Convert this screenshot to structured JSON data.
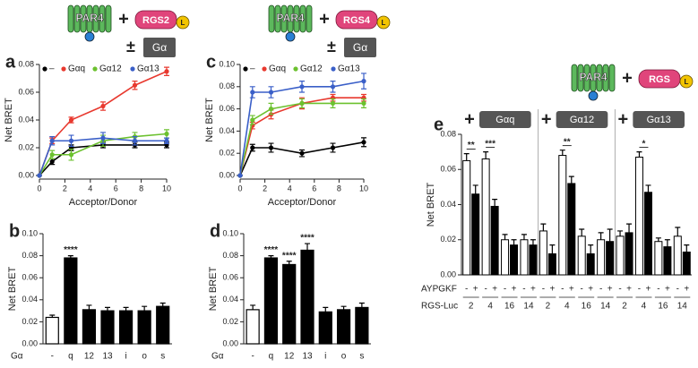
{
  "chart_data": [
    {
      "type": "line",
      "panel": "a",
      "schematic": {
        "receptor": "PAR4",
        "plus": "+",
        "rgs": "RGS2",
        "tag": "L",
        "pm": "±",
        "g": "Gα"
      },
      "xlabel": "Acceptor/Donor",
      "ylabel": "Net BRET",
      "x": [
        0,
        1,
        2.5,
        5,
        7.5,
        10
      ],
      "xlim": [
        0,
        10
      ],
      "xticks": [
        0,
        2,
        4,
        6,
        8,
        10
      ],
      "ylim": [
        0,
        0.08
      ],
      "yticks": [
        {
          "value": 0,
          "label": "0.00"
        },
        {
          "value": 0.02,
          "label": "0.02"
        },
        {
          "value": 0.04,
          "label": "0.04"
        },
        {
          "value": 0.06,
          "label": "0.06"
        },
        {
          "value": 0.08,
          "label": "0.08"
        }
      ],
      "series": [
        {
          "name": "–",
          "color": "#000000",
          "values": [
            0,
            0.01,
            0.02,
            0.022,
            0.022,
            0.022
          ],
          "errors": [
            0,
            0.002,
            0.002,
            0.002,
            0.002,
            0.002
          ]
        },
        {
          "name": "Gαq",
          "color": "#e8392f",
          "values": [
            0,
            0.025,
            0.04,
            0.05,
            0.065,
            0.075
          ],
          "errors": [
            0,
            0.002,
            0.002,
            0.003,
            0.003,
            0.003
          ]
        },
        {
          "name": "Gα12",
          "color": "#6cc12f",
          "values": [
            0,
            0.015,
            0.015,
            0.025,
            0.028,
            0.03
          ],
          "errors": [
            0,
            0.003,
            0.004,
            0.004,
            0.003,
            0.003
          ]
        },
        {
          "name": "Gα13",
          "color": "#3a5fc8",
          "values": [
            0,
            0.025,
            0.025,
            0.027,
            0.025,
            0.025
          ],
          "errors": [
            0,
            0.003,
            0.004,
            0.004,
            0.003,
            0.002
          ]
        }
      ]
    },
    {
      "type": "bar",
      "panel": "b",
      "ylabel": "Net BRET",
      "xlabel": "Gα",
      "categories": [
        "-",
        "q",
        "12",
        "13",
        "i",
        "o",
        "s"
      ],
      "values": [
        0.024,
        0.078,
        0.031,
        0.03,
        0.03,
        0.03,
        0.034
      ],
      "errors": [
        0.002,
        0.002,
        0.004,
        0.003,
        0.003,
        0.004,
        0.003
      ],
      "colors": [
        "#ffffff",
        "#000000",
        "#000000",
        "#000000",
        "#000000",
        "#000000",
        "#000000"
      ],
      "annotations": [
        null,
        "****",
        null,
        null,
        null,
        null,
        null
      ],
      "ylim": [
        0,
        0.1
      ],
      "yticks": [
        {
          "value": 0,
          "label": "0.00"
        },
        {
          "value": 0.02,
          "label": "0.02"
        },
        {
          "value": 0.04,
          "label": "0.04"
        },
        {
          "value": 0.06,
          "label": "0.06"
        },
        {
          "value": 0.08,
          "label": "0.08"
        },
        {
          "value": 0.1,
          "label": "0.10"
        }
      ]
    },
    {
      "type": "line",
      "panel": "c",
      "schematic": {
        "receptor": "PAR4",
        "plus": "+",
        "rgs": "RGS4",
        "tag": "L",
        "pm": "±",
        "g": "Gα"
      },
      "xlabel": "Acceptor/Donor",
      "ylabel": "Net BRET",
      "x": [
        0,
        1,
        2.5,
        5,
        7.5,
        10
      ],
      "xlim": [
        0,
        10
      ],
      "xticks": [
        0,
        2,
        4,
        6,
        8,
        10
      ],
      "ylim": [
        0,
        0.1
      ],
      "yticks": [
        {
          "value": 0,
          "label": "0.00"
        },
        {
          "value": 0.02,
          "label": "0.02"
        },
        {
          "value": 0.04,
          "label": "0.04"
        },
        {
          "value": 0.06,
          "label": "0.06"
        },
        {
          "value": 0.08,
          "label": "0.08"
        },
        {
          "value": 0.1,
          "label": "0.10"
        }
      ],
      "series": [
        {
          "name": "–",
          "color": "#000000",
          "values": [
            0,
            0.025,
            0.025,
            0.02,
            0.025,
            0.03
          ],
          "errors": [
            0,
            0.003,
            0.004,
            0.003,
            0.004,
            0.004
          ]
        },
        {
          "name": "Gαq",
          "color": "#e8392f",
          "values": [
            0,
            0.045,
            0.055,
            0.065,
            0.07,
            0.07
          ],
          "errors": [
            0,
            0.003,
            0.004,
            0.005,
            0.003,
            0.003
          ]
        },
        {
          "name": "Gα12",
          "color": "#6cc12f",
          "values": [
            0,
            0.05,
            0.06,
            0.065,
            0.065,
            0.065
          ],
          "errors": [
            0,
            0.004,
            0.005,
            0.004,
            0.004,
            0.004
          ]
        },
        {
          "name": "Gα13",
          "color": "#3a5fc8",
          "values": [
            0,
            0.075,
            0.075,
            0.08,
            0.08,
            0.085
          ],
          "errors": [
            0,
            0.005,
            0.005,
            0.005,
            0.005,
            0.007
          ]
        }
      ]
    },
    {
      "type": "bar",
      "panel": "d",
      "ylabel": "Net BRET",
      "xlabel": "Gα",
      "categories": [
        "-",
        "q",
        "12",
        "13",
        "i",
        "o",
        "s"
      ],
      "values": [
        0.031,
        0.078,
        0.072,
        0.085,
        0.029,
        0.031,
        0.033
      ],
      "errors": [
        0.004,
        0.002,
        0.003,
        0.006,
        0.004,
        0.003,
        0.004
      ],
      "colors": [
        "#ffffff",
        "#000000",
        "#000000",
        "#000000",
        "#000000",
        "#000000",
        "#000000"
      ],
      "annotations": [
        null,
        "****",
        "****",
        "****",
        null,
        null,
        null
      ],
      "ylim": [
        0,
        0.1
      ],
      "yticks": [
        {
          "value": 0,
          "label": "0.00"
        },
        {
          "value": 0.02,
          "label": "0.02"
        },
        {
          "value": 0.04,
          "label": "0.04"
        },
        {
          "value": 0.06,
          "label": "0.06"
        },
        {
          "value": 0.08,
          "label": "0.08"
        },
        {
          "value": 0.1,
          "label": "0.10"
        }
      ]
    },
    {
      "type": "grouped_bar",
      "panel": "e",
      "ylabel": "Net BRET",
      "schematic": {
        "receptor": "PAR4",
        "plus": "+",
        "rgs": "RGS",
        "tag": "L"
      },
      "row_labels": [
        "AYPGKF",
        "RGS-Luc"
      ],
      "ylim": [
        0,
        0.08
      ],
      "yticks": [
        {
          "value": 0,
          "label": "0.00"
        },
        {
          "value": 0.02,
          "label": "0.02"
        },
        {
          "value": 0.04,
          "label": "0.04"
        },
        {
          "value": 0.06,
          "label": "0.06"
        },
        {
          "value": 0.08,
          "label": "0.08"
        }
      ],
      "groups": [
        {
          "plus": "+",
          "title": "Gαq",
          "categories": [
            "2",
            "4",
            "16",
            "14"
          ],
          "annotations": [
            "**",
            "***",
            null,
            null
          ],
          "series": [
            {
              "name": "-",
              "color": "#ffffff",
              "values": [
                0.065,
                0.066,
                0.02,
                0.02
              ],
              "errors": [
                0.004,
                0.004,
                0.003,
                0.003
              ]
            },
            {
              "name": "+",
              "color": "#000000",
              "values": [
                0.046,
                0.039,
                0.017,
                0.017
              ],
              "errors": [
                0.005,
                0.004,
                0.003,
                0.003
              ]
            }
          ]
        },
        {
          "plus": "+",
          "title": "Gα12",
          "categories": [
            "2",
            "4",
            "16",
            "14"
          ],
          "annotations": [
            null,
            "**",
            null,
            null
          ],
          "series": [
            {
              "name": "-",
              "color": "#ffffff",
              "values": [
                0.025,
                0.068,
                0.022,
                0.02
              ],
              "errors": [
                0.004,
                0.003,
                0.004,
                0.004
              ]
            },
            {
              "name": "+",
              "color": "#000000",
              "values": [
                0.012,
                0.052,
                0.012,
                0.019
              ],
              "errors": [
                0.005,
                0.004,
                0.005,
                0.007
              ]
            }
          ]
        },
        {
          "plus": "+",
          "title": "Gα13",
          "categories": [
            "2",
            "4",
            "16",
            "14"
          ],
          "annotations": [
            null,
            "*",
            null,
            null
          ],
          "series": [
            {
              "name": "-",
              "color": "#ffffff",
              "values": [
                0.022,
                0.067,
                0.019,
                0.022
              ],
              "errors": [
                0.003,
                0.003,
                0.002,
                0.005
              ]
            },
            {
              "name": "+",
              "color": "#000000",
              "values": [
                0.024,
                0.047,
                0.016,
                0.013
              ],
              "errors": [
                0.005,
                0.004,
                0.004,
                0.004
              ]
            }
          ]
        }
      ]
    }
  ]
}
